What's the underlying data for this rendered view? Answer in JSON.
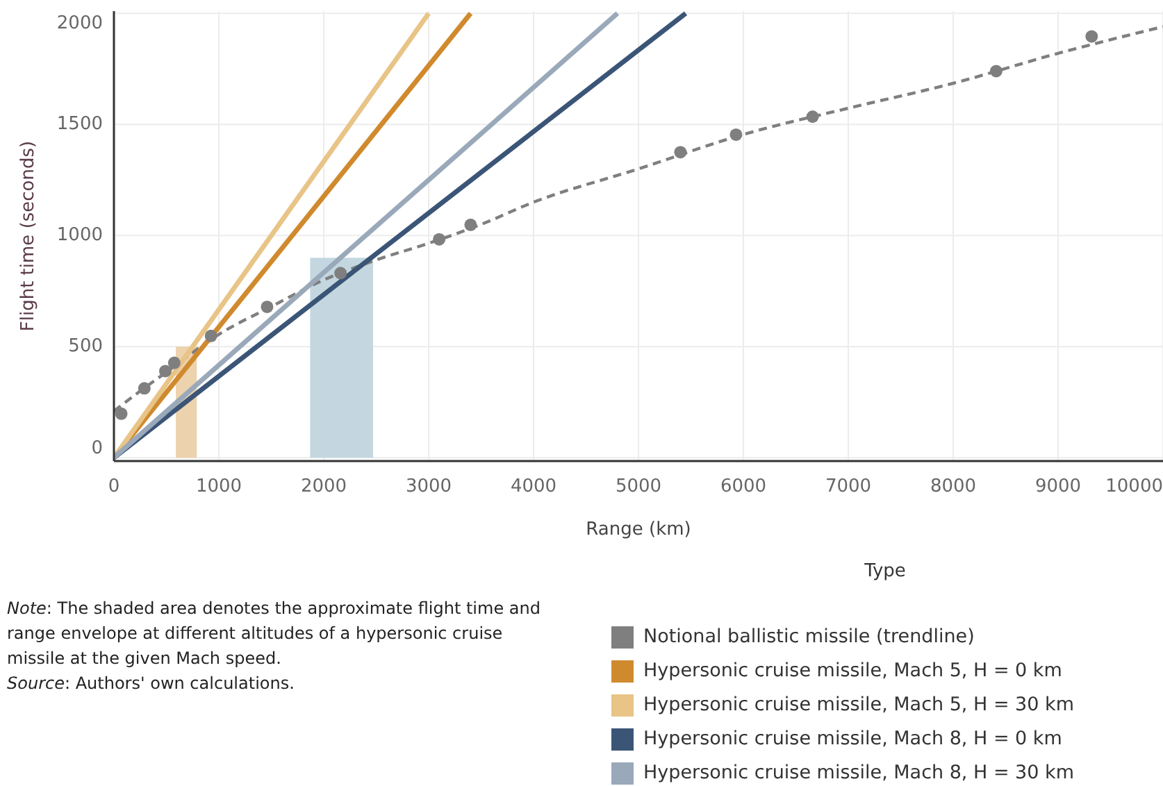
{
  "chart_data": {
    "type": "line",
    "xlabel": "Range (km)",
    "ylabel": "Flight time (seconds)",
    "legend_title": "Type",
    "legend": "bottom right",
    "grid": true,
    "xlim": [
      0,
      10000
    ],
    "xticks": [
      0,
      1000,
      2000,
      3000,
      4000,
      5000,
      6000,
      7000,
      8000,
      9000,
      10000
    ],
    "ylim": [
      -15,
      2010
    ],
    "yticks": [
      0,
      500,
      1000,
      1500,
      2000
    ],
    "annotations": [
      "Note: The shaded area denotes the approximate flight time and range envelope at different altitudes of a hypersonic cruise missile at the given Mach speed.",
      "Source: Authors' own calculations."
    ],
    "series": [
      {
        "type": "area",
        "color": "#ecd2ad",
        "x": [
          590,
          790
        ],
        "values": [
          500,
          500
        ]
      },
      {
        "type": "area",
        "color": "#c4d7e0",
        "x": [
          1870,
          2470
        ],
        "values": [
          900,
          900
        ]
      },
      {
        "name": "Notional ballistic missile (trendline)",
        "line_style": "dashed",
        "marker": "none",
        "color": "#7f7f7f",
        "x": [
          0,
          250,
          500,
          1000,
          1500,
          2000,
          2500,
          3000,
          3500,
          4000,
          5000,
          6000,
          7000,
          8000,
          9000,
          10000
        ],
        "values": [
          210,
          300,
          385,
          555,
          680,
          800,
          890,
          965,
          1050,
          1150,
          1300,
          1455,
          1573,
          1685,
          1820,
          1940
        ]
      },
      {
        "type": "scatter",
        "marker": "circle",
        "color": "#7f7f7f",
        "x": [
          70,
          290,
          490,
          575,
          925,
          1460,
          2160,
          3100,
          3400,
          5400,
          5930,
          6660,
          8410,
          9320
        ],
        "values": [
          198,
          312,
          390,
          427,
          548,
          679,
          831,
          983,
          1048,
          1375,
          1454,
          1535,
          1740,
          1896
        ]
      },
      {
        "name": "Hypersonic cruise missile, Mach 5, H = 0 km",
        "color": "#d08a2e",
        "x": [
          0,
          3400
        ],
        "values": [
          0,
          2000
        ]
      },
      {
        "name": "Hypersonic cruise missile, Mach 5, H = 30 km",
        "color": "#e8c487",
        "x": [
          0,
          3000
        ],
        "values": [
          0,
          2000
        ]
      },
      {
        "name": "Hypersonic cruise missile, Mach 8, H = 0 km",
        "color": "#3b5577",
        "x": [
          0,
          5450
        ],
        "values": [
          0,
          2000
        ]
      },
      {
        "name": "Hypersonic cruise missile, Mach 8, H = 30 km",
        "color": "#9aa9ba",
        "x": [
          0,
          4800
        ],
        "values": [
          0,
          2000
        ]
      }
    ]
  }
}
